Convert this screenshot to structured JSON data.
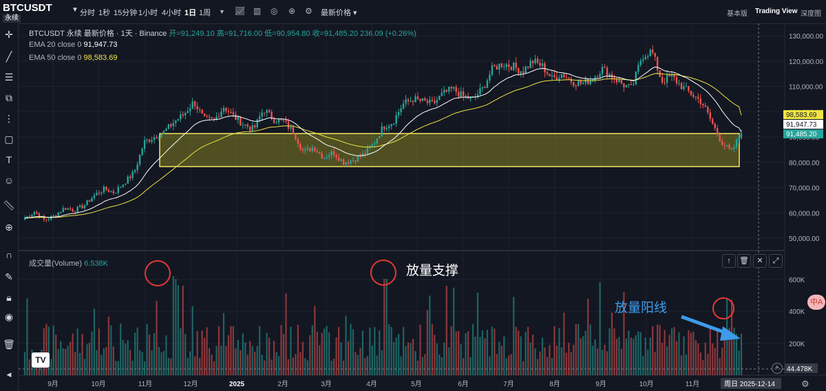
{
  "header": {
    "symbol": "BTCUSDT",
    "contract": "永续",
    "timeframes": [
      "分时",
      "1秒",
      "15分钟",
      "1小时",
      "4小时",
      "1日",
      "1周"
    ],
    "active_timeframe": "1日",
    "price_type": "最新价格",
    "right_tabs": [
      "基本版",
      "Trading View",
      "深度图"
    ],
    "active_right_tab": "Trading View"
  },
  "legend": {
    "title": "BTCUSDT 永续 最新价格 · 1天 · Binance",
    "ohlc": "开=91,249.10 高=91,716.00 低=90,954.80 收=91,485.20",
    "change": "236.09 (+0.26%)",
    "ema20_label": "EMA 20 close 0",
    "ema20_value": "91,947.73",
    "ema50_label": "EMA 50 close 0",
    "ema50_value": "98,583.69",
    "volume_label": "成交量(Volume)",
    "volume_value": "6.538K"
  },
  "annotations": {
    "volume_support": "放量支撑",
    "volume_bullish": "放量阳线"
  },
  "price_axis": {
    "ticks": [
      "130,000.00",
      "120,000.00",
      "110,000.00",
      "100,000.00",
      "90,000.00",
      "80,000.00",
      "70,000.00",
      "60,000.00",
      "50,000.00"
    ],
    "ema50_tag": "98,583.69",
    "ema20_tag": "91,947.73",
    "last_tag": "91,485.20"
  },
  "volume_axis": {
    "ticks": [
      "600K",
      "400K",
      "200K"
    ],
    "current_tag": "44.478K"
  },
  "time_axis": {
    "labels": [
      "9月",
      "10月",
      "11月",
      "12月",
      "2025",
      "2月",
      "3月",
      "4月",
      "5月",
      "6月",
      "7月",
      "8月",
      "9月",
      "10月",
      "11月"
    ],
    "crosshair_label": "周日 2025-12-14"
  },
  "colors": {
    "background": "#131722",
    "up": "#26a69a",
    "down": "#ef5350",
    "ema20": "#ffffff",
    "ema50": "#f0e442",
    "zone_border": "#f5e663",
    "annotation_circle": "#e53935",
    "annotation_arrow": "#3d9be9"
  },
  "icons": [
    "cursor-cross-icon",
    "trend-line-icon",
    "horizontal-lines-icon",
    "pattern-icon",
    "fib-icon",
    "rectangle-icon",
    "text-icon",
    "emoji-icon",
    "ruler-icon",
    "zoom-icon",
    "magnet-icon",
    "pencil-lock-icon",
    "lock-icon",
    "eye-icon",
    "trash-icon"
  ],
  "chart_data": {
    "type": "candlestick",
    "approximate_closes": [
      58000,
      60500,
      57000,
      59000,
      62000,
      61000,
      63000,
      67000,
      69500,
      68000,
      72000,
      76000,
      88000,
      90000,
      92000,
      96000,
      99000,
      104000,
      97000,
      96500,
      102000,
      98000,
      95000,
      93000,
      101000,
      97000,
      96000,
      92000,
      84000,
      86000,
      82000,
      84000,
      80000,
      81000,
      83000,
      87000,
      94000,
      96000,
      103000,
      105000,
      104000,
      103000,
      107000,
      109000,
      106000,
      105000,
      109000,
      117000,
      119000,
      118000,
      116000,
      120000,
      118000,
      113000,
      115000,
      112000,
      111000,
      113000,
      117000,
      114000,
      111000,
      109000,
      122000,
      124000,
      112000,
      114000,
      110000,
      107000,
      104000,
      96000,
      88000,
      84000,
      91485
    ],
    "ema20_last": 91947.73,
    "ema50_last": 98583.69,
    "support_zone": [
      78000,
      92000
    ],
    "volume_axis_ticks": [
      "600K",
      "400K",
      "200K"
    ]
  }
}
